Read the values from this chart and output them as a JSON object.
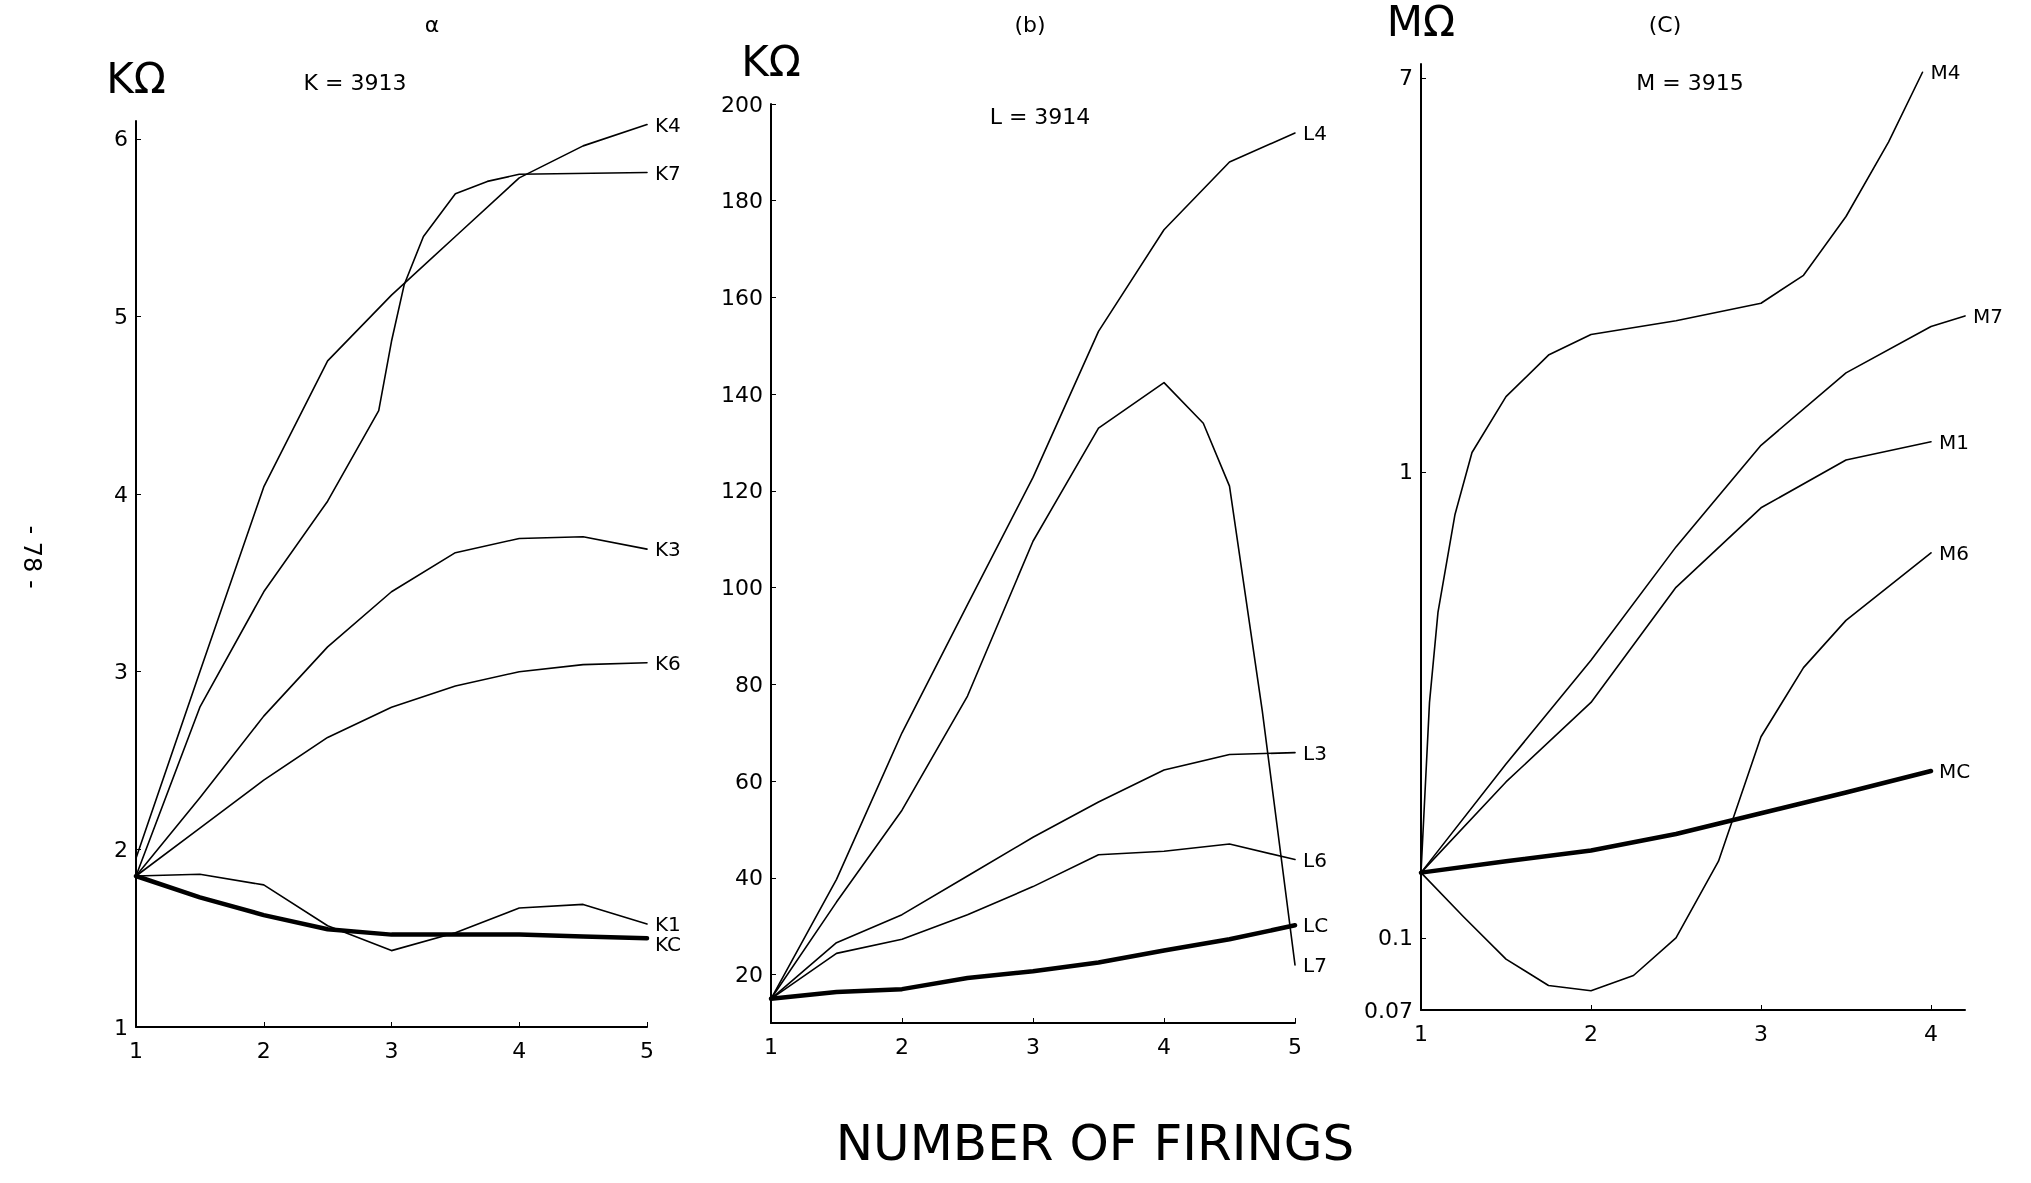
{
  "chart_data": [
    {
      "type": "line",
      "title": "α",
      "subtitle": "K = 3913",
      "ylabel": "KΩ",
      "annotations": [
        "- 78 -"
      ],
      "x": [
        1,
        1.5,
        2,
        2.5,
        3,
        3.5,
        4,
        4.5,
        5
      ],
      "xlim": [
        1,
        5
      ],
      "xticks": [
        1,
        2,
        3,
        4,
        5
      ],
      "ylim": [
        1,
        6.1
      ],
      "yticks": [
        1,
        2,
        3,
        4,
        5,
        6
      ],
      "grid": false,
      "legend": false,
      "marker": "none",
      "line_style": "solid",
      "series": [
        {
          "name": "K4",
          "color": "#000000",
          "values": [
            1.95,
            3.0,
            4.04,
            4.75,
            5.12,
            5.45,
            5.78,
            5.96,
            6.08
          ]
        },
        {
          "name": "K7",
          "color": "#000000",
          "x": [
            1,
            1.5,
            2,
            2.5,
            2.9,
            3,
            3.1,
            3.25,
            3.5,
            3.75,
            4,
            5
          ],
          "values": [
            1.85,
            2.8,
            3.45,
            3.96,
            4.47,
            4.86,
            5.18,
            5.45,
            5.69,
            5.76,
            5.8,
            5.81
          ]
        },
        {
          "name": "K3",
          "color": "#000000",
          "values": [
            1.85,
            2.29,
            2.75,
            3.14,
            3.45,
            3.67,
            3.75,
            3.76,
            3.69
          ]
        },
        {
          "name": "K6",
          "color": "#000000",
          "values": [
            1.85,
            2.12,
            2.39,
            2.63,
            2.8,
            2.92,
            3.0,
            3.04,
            3.05
          ]
        },
        {
          "name": "K1",
          "color": "#000000",
          "values": [
            1.85,
            1.86,
            1.8,
            1.57,
            1.43,
            1.53,
            1.67,
            1.69,
            1.58
          ]
        },
        {
          "name": "KC",
          "color": "#000000",
          "values": [
            1.85,
            1.73,
            1.63,
            1.55,
            1.52,
            1.52,
            1.52,
            1.51,
            1.5
          ]
        }
      ]
    },
    {
      "type": "line",
      "title": "(b)",
      "subtitle": "L = 3914",
      "ylabel": "KΩ",
      "xlabel": "NUMBER OF FIRINGS",
      "x": [
        1,
        1.5,
        2,
        2.5,
        3,
        3.5,
        4,
        4.5,
        5
      ],
      "xlim": [
        1,
        5
      ],
      "xticks": [
        1,
        2,
        3,
        4,
        5
      ],
      "ylim": [
        10,
        200
      ],
      "yticks": [
        20,
        40,
        60,
        80,
        100,
        120,
        140,
        160,
        180,
        200
      ],
      "grid": false,
      "legend": false,
      "marker": "none",
      "line_style": "solid",
      "series": [
        {
          "name": "L4",
          "color": "#000000",
          "values": [
            15,
            39.7,
            70,
            96.5,
            122.8,
            153,
            174,
            188,
            194
          ]
        },
        {
          "name": "L7",
          "color": "#000000",
          "x": [
            1,
            1.5,
            2,
            2.5,
            3,
            3.5,
            4,
            4.3,
            4.5,
            4.75,
            5
          ],
          "values": [
            15,
            35,
            54,
            77.6,
            109.6,
            133,
            142.4,
            134,
            121,
            74.6,
            22
          ]
        },
        {
          "name": "L3",
          "color": "#000000",
          "values": [
            15,
            26.6,
            32.4,
            40.4,
            48.4,
            55.7,
            62.3,
            65.5,
            65.9
          ]
        },
        {
          "name": "L6",
          "color": "#000000",
          "values": [
            15,
            24.4,
            27.3,
            32.4,
            38.2,
            44.8,
            45.5,
            47,
            43.8
          ]
        },
        {
          "name": "LC",
          "color": "#000000",
          "values": [
            15,
            16.4,
            17,
            19.3,
            20.7,
            22.5,
            25,
            27.3,
            30.2
          ]
        }
      ]
    },
    {
      "type": "line",
      "title": "(C)",
      "subtitle": "M = 3915",
      "ylabel": "MΩ",
      "log": "y",
      "x": [
        1,
        1.5,
        2,
        2.5,
        3,
        3.5,
        4
      ],
      "xlim": [
        1,
        4.2
      ],
      "xticks": [
        1,
        2,
        3,
        4
      ],
      "ylim": [
        0.07,
        7.5
      ],
      "yticks": [
        0.07,
        0.1,
        1,
        7
      ],
      "grid": false,
      "legend": false,
      "marker": "none",
      "line_style": "solid",
      "series": [
        {
          "name": "M4",
          "color": "#000000",
          "x": [
            1,
            1.05,
            1.1,
            1.2,
            1.3,
            1.5,
            1.75,
            2,
            2.5,
            3,
            3.25,
            3.5,
            3.75,
            3.95
          ],
          "values": [
            0.138,
            0.32,
            0.5,
            0.81,
            1.1,
            1.45,
            1.78,
            1.97,
            2.11,
            2.3,
            2.64,
            3.53,
            5.1,
            7.2
          ]
        },
        {
          "name": "M7",
          "color": "#000000",
          "x": [
            1,
            1.5,
            2,
            2.5,
            3,
            3.5,
            4,
            4.2
          ],
          "values": [
            0.138,
            0.236,
            0.394,
            0.69,
            1.14,
            1.63,
            2.05,
            2.16
          ]
        },
        {
          "name": "M1",
          "color": "#000000",
          "values": [
            0.138,
            0.216,
            0.32,
            0.565,
            0.837,
            1.06,
            1.16
          ]
        },
        {
          "name": "M6",
          "color": "#000000",
          "x": [
            1,
            1.25,
            1.5,
            1.75,
            2,
            2.25,
            2.5,
            2.75,
            3,
            3.25,
            3.5,
            4
          ],
          "values": [
            0.138,
            0.111,
            0.09,
            0.079,
            0.077,
            0.083,
            0.1,
            0.146,
            0.27,
            0.38,
            0.48,
            0.67
          ]
        },
        {
          "name": "MC",
          "color": "#000000",
          "values": [
            0.138,
            0.146,
            0.154,
            0.167,
            0.185,
            0.205,
            0.228
          ]
        }
      ]
    }
  ]
}
